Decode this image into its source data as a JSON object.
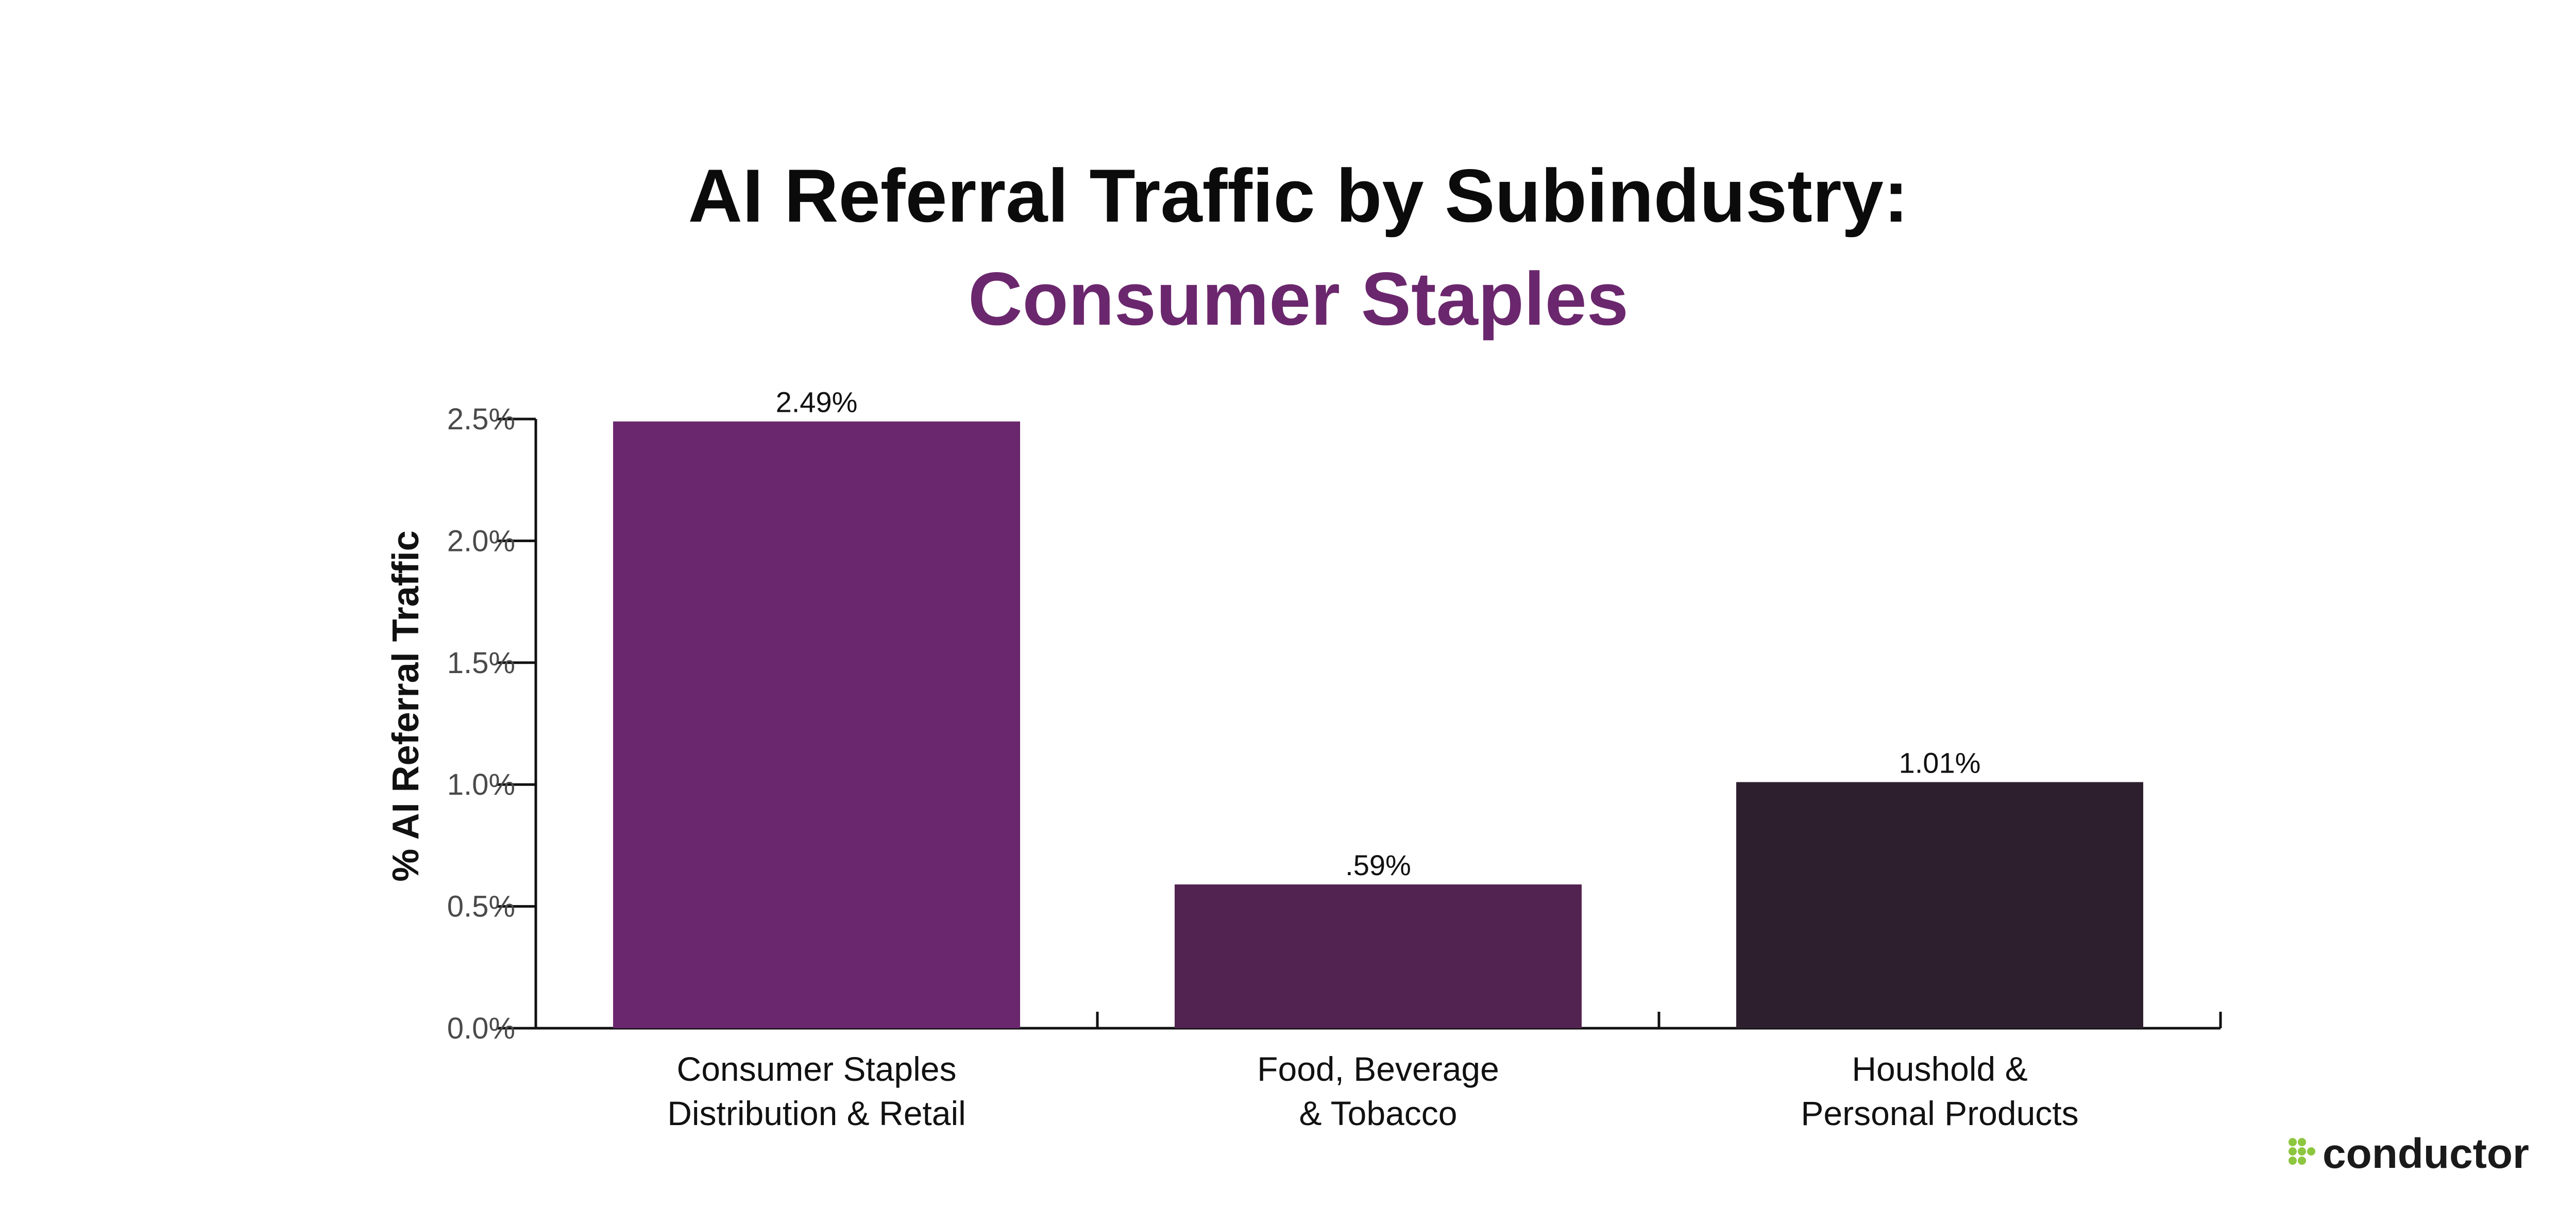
{
  "colors": {
    "subtitle": "#6b276d",
    "logo_dots": "#8dc63f"
  },
  "logo": {
    "icon": "conductor-dots-icon",
    "text": "conductor"
  },
  "chart_data": {
    "type": "bar",
    "title": "AI Referral Traffic by Subindustry:",
    "subtitle": "Consumer Staples",
    "xlabel": "",
    "ylabel": "% AI Referral Traffic",
    "ylim": [
      0,
      2.5
    ],
    "yticks": [
      0.0,
      0.5,
      1.0,
      1.5,
      2.0,
      2.5
    ],
    "ytick_labels": [
      "0.0%",
      "0.5%",
      "1.0%",
      "1.5%",
      "2.0%",
      "2.5%"
    ],
    "categories": [
      [
        "Consumer Staples",
        "Distribution & Retail"
      ],
      [
        "Food, Beverage",
        "& Tobacco"
      ],
      [
        "Houshold &",
        "Personal Products"
      ]
    ],
    "values": [
      2.49,
      0.59,
      1.01
    ],
    "data_labels": [
      "2.49%",
      ".59%",
      "1.01%"
    ],
    "bar_colors": [
      "#6b276d",
      "#522350",
      "#2e1f2e"
    ],
    "grid": false,
    "legend": "none"
  }
}
